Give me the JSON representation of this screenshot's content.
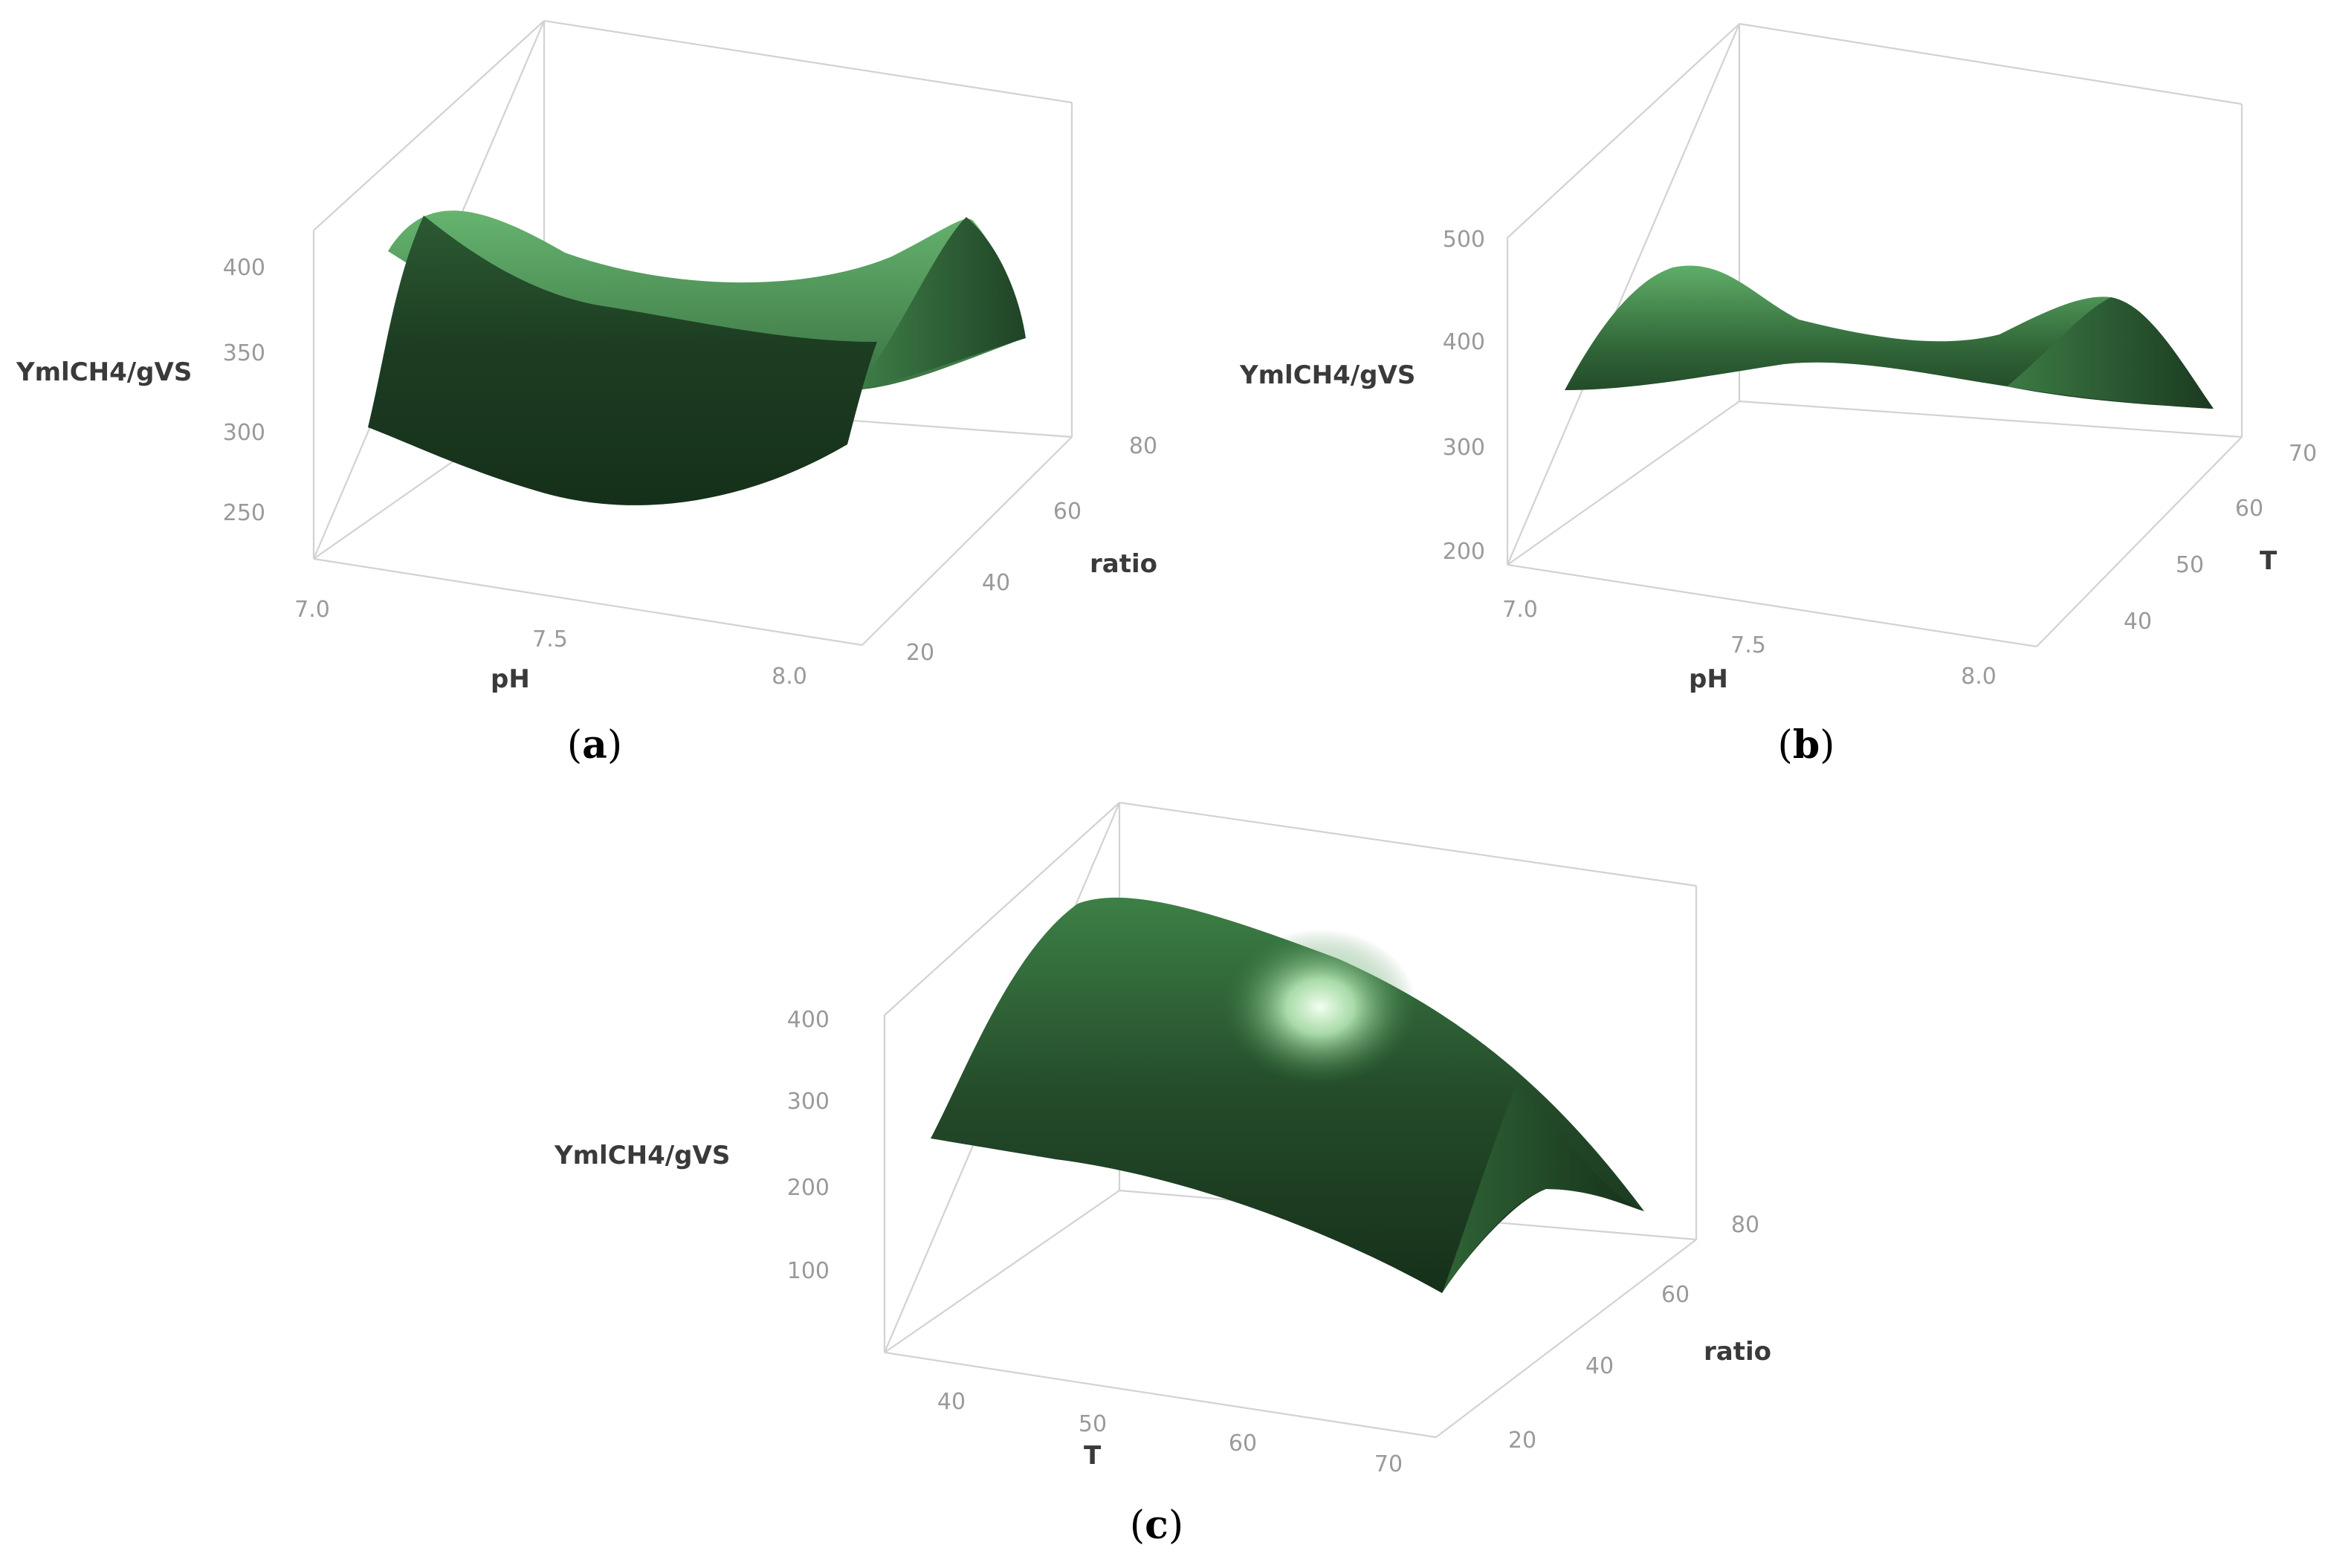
{
  "colors": {
    "surface_dark": "#16301a",
    "surface_mid": "#2e5f36",
    "surface_light": "#5fae6a",
    "highlight": "#e9fbe8",
    "frame": "#d2d2d2",
    "tick": "#9a9a9a"
  },
  "chart_data": [
    {
      "type": "surface",
      "panel": "a",
      "caption": "(a)",
      "caption_letter": "a",
      "zlabel": "YmlCH4/gVS",
      "xlabel": "pH",
      "ylabel": "ratio",
      "x_ticks": [
        "7.0",
        "7.5",
        "8.0"
      ],
      "y_ticks": [
        "20",
        "40",
        "60",
        "80"
      ],
      "z_ticks": [
        "250",
        "300",
        "350",
        "400"
      ],
      "xlim": [
        7.0,
        8.0
      ],
      "ylim": [
        20,
        80
      ],
      "zlim": [
        225,
        425
      ],
      "shape": "saddle: minimum near pH 7.5 along front edge, rising toward ends; peaks near ratio 50",
      "corner_values": {
        "front_left": 330,
        "front_mid": 272,
        "front_right": 335,
        "ridge_left": 405,
        "ridge_right": 400,
        "back_right": 355
      }
    },
    {
      "type": "surface",
      "panel": "b",
      "caption": "(b)",
      "caption_letter": "b",
      "zlabel": "YmlCH4/gVS",
      "xlabel": "pH",
      "ylabel": "T",
      "x_ticks": [
        "7.0",
        "7.5",
        "8.0"
      ],
      "y_ticks": [
        "40",
        "50",
        "60",
        "70"
      ],
      "z_ticks": [
        "200",
        "300",
        "400",
        "500"
      ],
      "xlim": [
        7.0,
        8.0
      ],
      "ylim": [
        35,
        70
      ],
      "zlim": [
        200,
        500
      ],
      "shape": "saddle: peaks at pH 7.0 and 8.0 near T 50, dip at pH 7.5",
      "corner_values": {
        "front_left": 395,
        "front_right": 380,
        "peak_left": 475,
        "peak_right": 470,
        "saddle": 410
      }
    },
    {
      "type": "surface",
      "panel": "c",
      "caption": "(c)",
      "caption_letter": "c",
      "zlabel": "YmlCH4/gVS",
      "xlabel": "T",
      "ylabel": "ratio",
      "x_ticks": [
        "40",
        "50",
        "60",
        "70"
      ],
      "y_ticks": [
        "20",
        "40",
        "60",
        "80"
      ],
      "z_ticks": [
        "100",
        "200",
        "300",
        "400"
      ],
      "xlim": [
        35,
        72
      ],
      "ylim": [
        20,
        80
      ],
      "zlim": [
        0,
        450
      ],
      "shape": "dome: maximum near T 40, ratio 50; decreasing toward T 70",
      "corner_values": {
        "front_left": 300,
        "peak": 420,
        "front_right": 180,
        "back_right": 130
      }
    }
  ]
}
